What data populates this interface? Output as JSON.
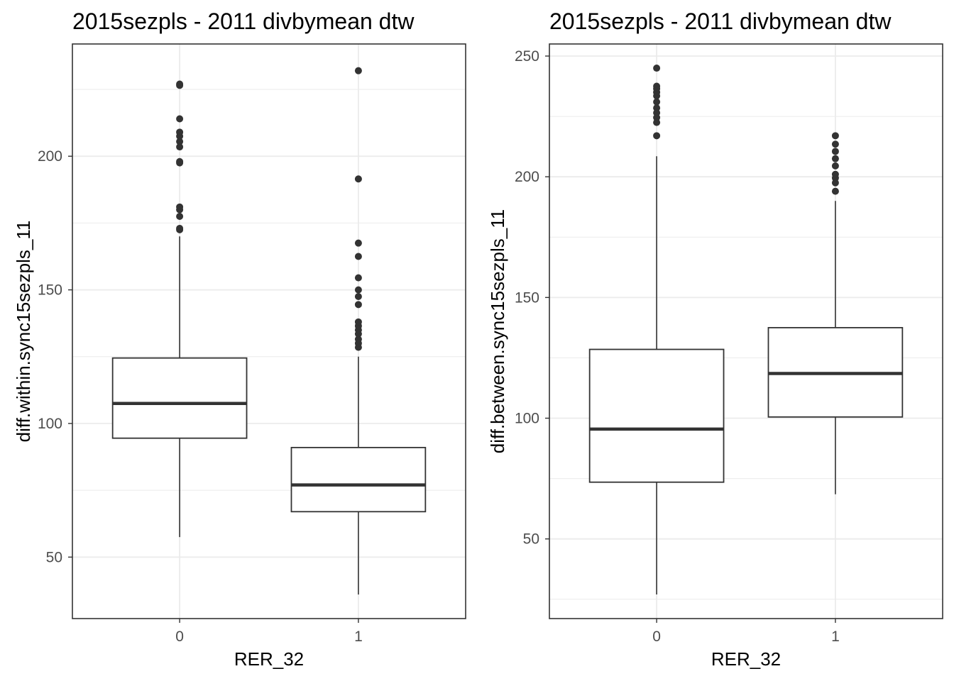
{
  "chart_data": [
    {
      "type": "boxplot",
      "title": "2015sezpls - 2011 divbymean dtw",
      "xlabel": "RER_32",
      "ylabel": "diff.within.sync15sezpls_11",
      "categories": [
        "0",
        "1"
      ],
      "ylim": [
        27,
        242
      ],
      "yticks": [
        50,
        100,
        150,
        200
      ],
      "ytick_labels": [
        "50",
        "100",
        "150",
        "200"
      ],
      "grid": true,
      "boxes": [
        {
          "category": "0",
          "whisker_low": 57.5,
          "q1": 94.5,
          "median": 107.5,
          "q3": 124.5,
          "whisker_high": 170,
          "outliers": [
            172.5,
            173,
            177.5,
            180,
            181,
            197.5,
            198,
            203.5,
            205.5,
            207.5,
            209,
            214,
            226.5,
            227
          ]
        },
        {
          "category": "1",
          "whisker_low": 36,
          "q1": 67,
          "median": 77,
          "q3": 91,
          "whisker_high": 125,
          "outliers": [
            128.5,
            130,
            131.5,
            133.5,
            135,
            136.5,
            138,
            144.5,
            147.5,
            150,
            154.5,
            162.5,
            167.5,
            191.5,
            232
          ]
        }
      ]
    },
    {
      "type": "boxplot",
      "title": "2015sezpls - 2011 divbymean dtw",
      "xlabel": "RER_32",
      "ylabel": "diff.between.sync15sezpls_11",
      "categories": [
        "0",
        "1"
      ],
      "ylim": [
        17,
        255
      ],
      "yticks": [
        50,
        100,
        150,
        200,
        250
      ],
      "ytick_labels": [
        "50",
        "100",
        "150",
        "200",
        "250"
      ],
      "grid": true,
      "boxes": [
        {
          "category": "0",
          "whisker_low": 27,
          "q1": 73.5,
          "median": 95.5,
          "q3": 128.5,
          "whisker_high": 208.5,
          "outliers": [
            217,
            222.5,
            224.5,
            226.5,
            228.5,
            231,
            233.5,
            235,
            236.5,
            237.5,
            245
          ]
        },
        {
          "category": "1",
          "whisker_low": 68.5,
          "q1": 100.5,
          "median": 118.5,
          "q3": 137.5,
          "whisker_high": 190,
          "outliers": [
            194,
            197.5,
            199.5,
            201,
            204.5,
            207.5,
            210.5,
            213.5,
            217
          ]
        }
      ]
    }
  ]
}
